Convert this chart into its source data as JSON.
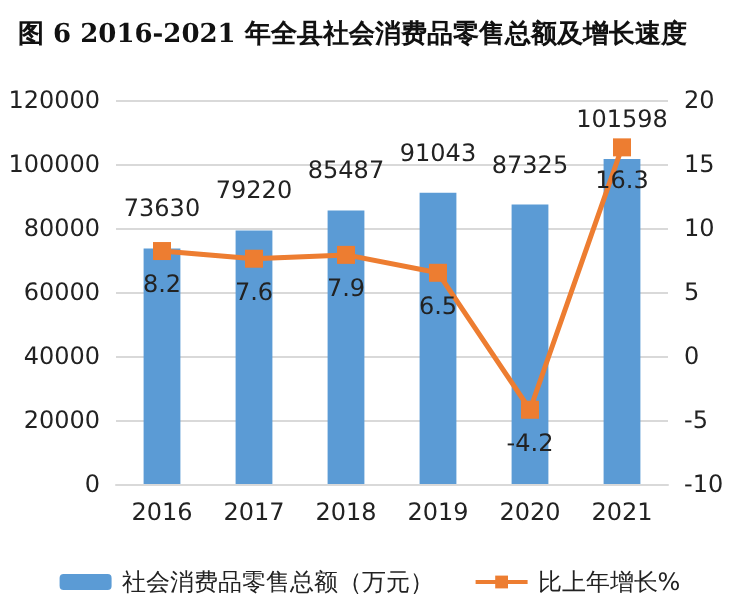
{
  "chart_data": {
    "type": "bar",
    "title": "图 6 2016-2021 年全县社会消费品零售总额及增长速度",
    "categories": [
      "2016",
      "2017",
      "2018",
      "2019",
      "2020",
      "2021"
    ],
    "series": [
      {
        "name": "社会消费品零售总额（万元）",
        "color": "#5b9bd5",
        "values": [
          73630,
          79220,
          85487,
          91043,
          87325,
          101598
        ]
      },
      {
        "name": "比上年增长%",
        "type": "line",
        "axis": "y2",
        "color": "#ed7d31",
        "values": [
          8.2,
          7.6,
          7.9,
          6.5,
          -4.2,
          16.3
        ]
      }
    ],
    "ylim": [
      0,
      120000
    ],
    "yticks": [
      0,
      20000,
      40000,
      60000,
      80000,
      100000,
      120000
    ],
    "y2lim": [
      -10,
      20
    ],
    "y2ticks": [
      -10,
      -5,
      0,
      5,
      10,
      15,
      20
    ],
    "data_labels": true,
    "grid": "y",
    "legend": "bottom",
    "marker": "square"
  }
}
